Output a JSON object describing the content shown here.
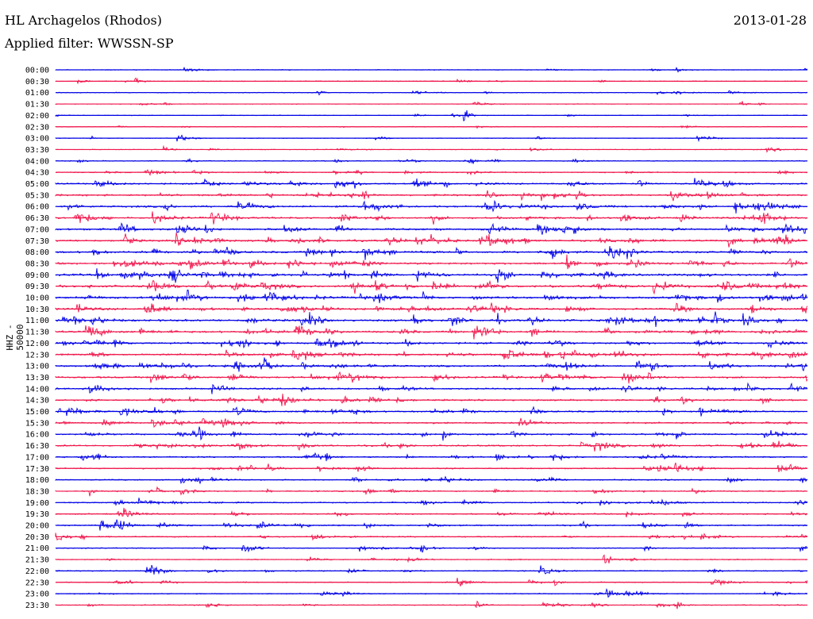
{
  "header": {
    "station": "HL Archagelos (Rhodos)",
    "date": "2013-01-28",
    "filter": "Applied filter: WWSSN-SP"
  },
  "channel_label": "HHZ - 50000",
  "colors": {
    "trace_a": "#0000e6",
    "trace_b": "#f0164c"
  },
  "time_labels": [
    "00:00",
    "00:30",
    "01:00",
    "01:30",
    "02:00",
    "02:30",
    "03:00",
    "03:30",
    "04:00",
    "04:30",
    "05:00",
    "05:30",
    "06:00",
    "06:30",
    "07:00",
    "07:30",
    "08:00",
    "08:30",
    "09:00",
    "09:30",
    "10:00",
    "10:30",
    "11:00",
    "11:30",
    "12:00",
    "12:30",
    "13:00",
    "13:30",
    "14:00",
    "14:30",
    "15:00",
    "15:30",
    "16:00",
    "16:30",
    "17:00",
    "17:30",
    "18:00",
    "18:30",
    "19:00",
    "19:30",
    "20:00",
    "20:30",
    "21:00",
    "21:30",
    "22:00",
    "22:30",
    "23:00",
    "23:30"
  ],
  "activity_level": [
    0.15,
    0.2,
    0.2,
    0.12,
    0.12,
    0.18,
    0.15,
    0.2,
    0.3,
    0.35,
    0.6,
    0.75,
    0.85,
    0.8,
    0.9,
    0.85,
    0.85,
    0.9,
    1.0,
    0.95,
    0.95,
    0.85,
    0.95,
    0.85,
    0.8,
    0.85,
    0.8,
    0.8,
    0.7,
    0.65,
    0.65,
    0.6,
    0.7,
    0.65,
    0.6,
    0.5,
    0.45,
    0.4,
    0.5,
    0.45,
    0.5,
    0.45,
    0.35,
    0.3,
    0.3,
    0.35,
    0.3,
    0.3
  ]
}
